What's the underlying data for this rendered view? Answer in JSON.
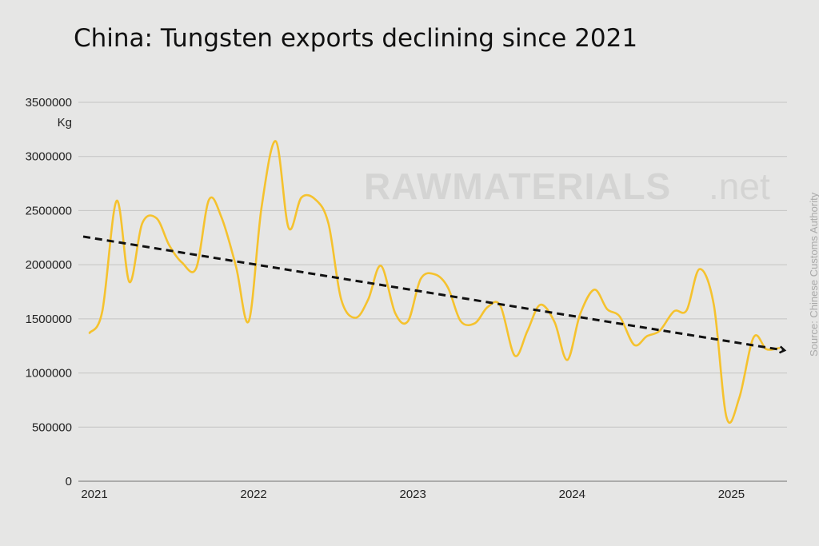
{
  "chart_data": {
    "type": "line",
    "title": "China: Tungsten exports declining since 2021",
    "ylabel": "Kg",
    "xlabel": "",
    "ylim": [
      0,
      3500000
    ],
    "yticks": [
      0,
      500000,
      1000000,
      1500000,
      2000000,
      2500000,
      3000000,
      3500000
    ],
    "ytick_labels": [
      "0",
      "500000",
      "1000000",
      "1500000",
      "2000000",
      "2500000",
      "3000000",
      "3500000"
    ],
    "xlim": [
      2021.0,
      2025.45
    ],
    "xticks": [
      2021,
      2022,
      2023,
      2024,
      2025
    ],
    "xtick_labels": [
      "2021",
      "2022",
      "2023",
      "2024",
      "2025"
    ],
    "grid": true,
    "series": [
      {
        "color": "#f5c22e",
        "x": [
          2021.0,
          2021.08,
          2021.17,
          2021.25,
          2021.33,
          2021.42,
          2021.5,
          2021.58,
          2021.67,
          2021.75,
          2021.83,
          2021.92,
          2022.0,
          2022.08,
          2022.17,
          2022.25,
          2022.33,
          2022.42,
          2022.5,
          2022.58,
          2022.67,
          2022.75,
          2022.83,
          2022.92,
          2023.0,
          2023.08,
          2023.17,
          2023.25,
          2023.33,
          2023.42,
          2023.5,
          2023.58,
          2023.67,
          2023.75,
          2023.83,
          2023.92,
          2024.0,
          2024.08,
          2024.17,
          2024.25,
          2024.33,
          2024.42,
          2024.5,
          2024.58,
          2024.67,
          2024.75,
          2024.83,
          2024.92,
          2025.0,
          2025.08,
          2025.17,
          2025.25,
          2025.33
        ],
        "values": [
          1370000,
          1570000,
          2590000,
          1840000,
          2380000,
          2430000,
          2180000,
          2020000,
          1970000,
          2600000,
          2430000,
          1980000,
          1480000,
          2530000,
          3140000,
          2340000,
          2620000,
          2600000,
          2380000,
          1680000,
          1510000,
          1680000,
          1990000,
          1550000,
          1480000,
          1870000,
          1910000,
          1790000,
          1480000,
          1460000,
          1610000,
          1620000,
          1160000,
          1390000,
          1630000,
          1470000,
          1120000,
          1540000,
          1770000,
          1590000,
          1520000,
          1260000,
          1340000,
          1390000,
          1570000,
          1580000,
          1960000,
          1630000,
          590000,
          770000,
          1330000,
          1220000,
          1230000
        ]
      }
    ],
    "trend": {
      "color": "#111111",
      "style": "dashed-arrow",
      "x": [
        2021.0,
        2025.4
      ],
      "values": [
        2260000,
        1210000
      ]
    }
  },
  "watermark": {
    "brand": "RAWMATERIALS",
    "suffix": ".net"
  },
  "source": "Source: Chinese Customs Authority"
}
